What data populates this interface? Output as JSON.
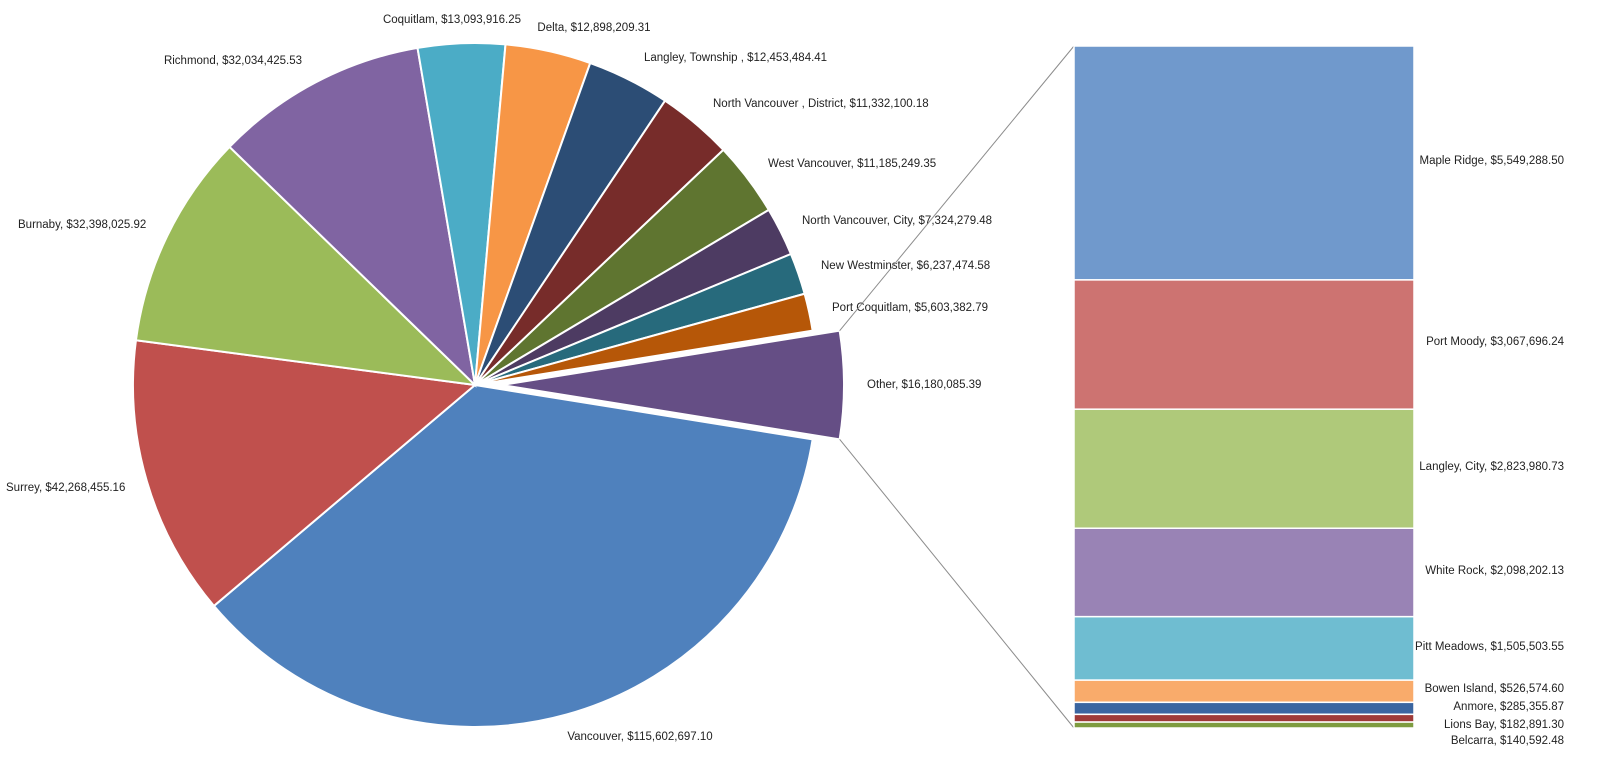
{
  "chart_data": {
    "type": "pie",
    "subtype": "bar-of-pie",
    "title": "",
    "slices": [
      {
        "label": "Vancouver, $115,602,697.10",
        "value": 115602697.1,
        "color": "#4F81BD"
      },
      {
        "label": "Surrey, $42,268,455.16",
        "value": 42268455.16,
        "color": "#C0504D"
      },
      {
        "label": "Burnaby, $32,398,025.92",
        "value": 32398025.92,
        "color": "#9BBB59"
      },
      {
        "label": "Richmond, $32,034,425.53",
        "value": 32034425.53,
        "color": "#8064A2"
      },
      {
        "label": "Coquitlam, $13,093,916.25",
        "value": 13093916.25,
        "color": "#4BACC6"
      },
      {
        "label": "Delta, $12,898,209.31",
        "value": 12898209.31,
        "color": "#F79646"
      },
      {
        "label": "Langley, Township , $12,453,484.41",
        "value": 12453484.41,
        "color": "#2C4D75"
      },
      {
        "label": "North Vancouver , District, $11,332,100.18",
        "value": 11332100.18,
        "color": "#772C2A"
      },
      {
        "label": "West Vancouver, $11,185,249.35",
        "value": 11185249.35,
        "color": "#5F7530"
      },
      {
        "label": "North Vancouver, City, $7,324,279.48",
        "value": 7324279.48,
        "color": "#4D3B62"
      },
      {
        "label": "New Westminster, $6,237,474.58",
        "value": 6237474.58,
        "color": "#276A7C"
      },
      {
        "label": "Port Coquitlam, $5,603,382.79",
        "value": 5603382.79,
        "color": "#B65708"
      }
    ],
    "other": {
      "label": "Other, $16,180,085.39",
      "value": 16180085.39,
      "color": "#654E85"
    },
    "breakdown": [
      {
        "label": "Maple Ridge, $5,549,288.50",
        "value": 5549288.5,
        "color": "#7099CC"
      },
      {
        "label": "Port Moody, $3,067,696.24",
        "value": 3067696.24,
        "color": "#CD7371"
      },
      {
        "label": "Langley, City, $2,823,980.73",
        "value": 2823980.73,
        "color": "#AFC97A"
      },
      {
        "label": "White Rock, $2,098,202.13",
        "value": 2098202.13,
        "color": "#9983B5"
      },
      {
        "label": "Pitt Meadows, $1,505,503.55",
        "value": 1505503.55,
        "color": "#6FBDD1"
      },
      {
        "label": "Bowen Island, $526,574.60",
        "value": 526574.6,
        "color": "#F9AB6B"
      },
      {
        "label": "Anmore, $285,355.87",
        "value": 285355.87,
        "color": "#3A65A0"
      },
      {
        "label": "Lions Bay, $182,891.30",
        "value": 182891.3,
        "color": "#9E3A38"
      },
      {
        "label": "Belcarra, $140,592.48",
        "value": 140592.48,
        "color": "#7E9C40"
      }
    ],
    "legend": "none"
  }
}
